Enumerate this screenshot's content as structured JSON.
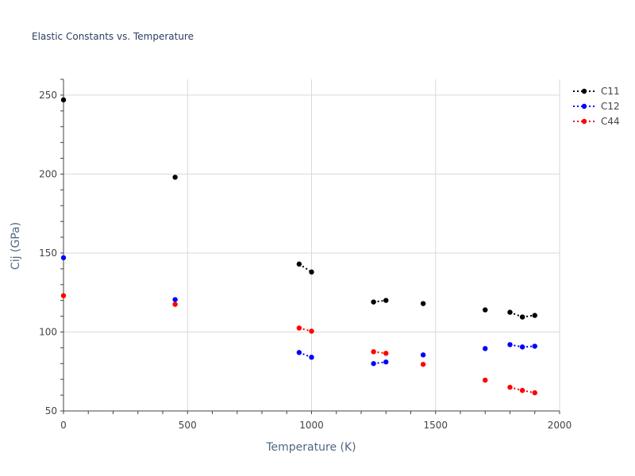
{
  "chart_data": {
    "type": "scatter",
    "title": "Elastic Constants vs. Temperature",
    "xlabel": "Temperature (K)",
    "ylabel": "Cij (GPa)",
    "xlim": [
      0,
      2000
    ],
    "ylim": [
      50,
      260
    ],
    "xticks": [
      0,
      500,
      1000,
      1500,
      2000
    ],
    "yticks": [
      50,
      100,
      150,
      200,
      250
    ],
    "grid": true,
    "legend_position": "top-right",
    "series": [
      {
        "name": "C11",
        "color": "#000000",
        "points": [
          [
            0,
            247
          ],
          [
            450,
            198
          ],
          [
            950,
            143
          ],
          [
            1000,
            138
          ],
          [
            1250,
            119
          ],
          [
            1300,
            120
          ],
          [
            1450,
            118
          ],
          [
            1700,
            114
          ],
          [
            1800,
            112.5
          ],
          [
            1850,
            109.5
          ],
          [
            1900,
            110.5
          ]
        ],
        "dotted_segments": [
          [
            2,
            3
          ],
          [
            4,
            5
          ],
          [
            8,
            9
          ],
          [
            9,
            10
          ]
        ]
      },
      {
        "name": "C12",
        "color": "#0000ff",
        "points": [
          [
            0,
            147
          ],
          [
            450,
            120.5
          ],
          [
            950,
            87
          ],
          [
            1000,
            84
          ],
          [
            1250,
            80
          ],
          [
            1300,
            81
          ],
          [
            1450,
            85.5
          ],
          [
            1700,
            89.5
          ],
          [
            1800,
            92
          ],
          [
            1850,
            90.5
          ],
          [
            1900,
            91
          ]
        ],
        "dotted_segments": [
          [
            2,
            3
          ],
          [
            4,
            5
          ],
          [
            8,
            9
          ],
          [
            9,
            10
          ]
        ]
      },
      {
        "name": "C44",
        "color": "#ff0000",
        "points": [
          [
            0,
            123
          ],
          [
            450,
            117.5
          ],
          [
            950,
            102.5
          ],
          [
            1000,
            100.5
          ],
          [
            1250,
            87.5
          ],
          [
            1300,
            86.5
          ],
          [
            1450,
            79.5
          ],
          [
            1700,
            69.5
          ],
          [
            1800,
            65
          ],
          [
            1850,
            63
          ],
          [
            1900,
            61.5
          ]
        ],
        "dotted_segments": [
          [
            2,
            3
          ],
          [
            4,
            5
          ],
          [
            8,
            9
          ],
          [
            9,
            10
          ]
        ]
      }
    ]
  }
}
